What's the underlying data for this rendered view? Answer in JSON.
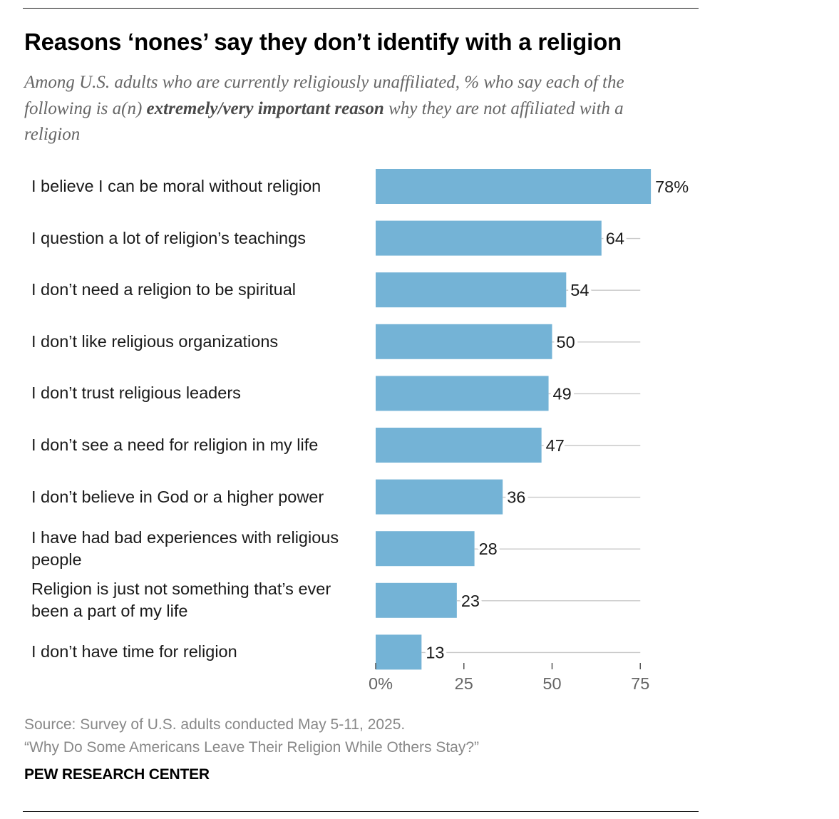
{
  "title": "Reasons ‘nones’ say they don’t identify with a religion",
  "subtitle": {
    "pre": "Among U.S. adults who are currently religiously unaffiliated, % who say each of the following is a(n) ",
    "emphasis": "extremely/very important reason",
    "post": " why they are not affiliated with a religion"
  },
  "chart_data": {
    "type": "bar",
    "orientation": "horizontal",
    "categories": [
      "I believe I can be moral without religion",
      "I question a lot of religion’s teachings",
      "I don’t need a religion to be spiritual",
      "I don’t like religious organizations",
      "I don’t trust religious leaders",
      "I don’t see a need for religion in my life",
      "I don’t believe in God or a higher power",
      "I have had bad experiences with religious people",
      "Religion is just not something that’s ever been a part of my life",
      "I don’t have time for religion"
    ],
    "values": [
      78,
      64,
      54,
      50,
      49,
      47,
      36,
      28,
      23,
      13
    ],
    "value_labels": [
      "78%",
      "64",
      "54",
      "50",
      "49",
      "47",
      "36",
      "28",
      "23",
      "13"
    ],
    "xlim": [
      0,
      75
    ],
    "xticks": [
      0,
      25,
      50,
      75
    ],
    "xtick_labels": [
      "0%",
      "25",
      "50",
      "75"
    ],
    "bar_color": "#74b3d6",
    "guide_color": "#c8c8c8",
    "xlabel": "",
    "ylabel": ""
  },
  "source": {
    "line1": "Source: Survey of U.S. adults conducted May 5-11, 2025.",
    "line2": "“Why Do Some Americans Leave Their Religion While Others Stay?”"
  },
  "brand": "PEW RESEARCH CENTER"
}
